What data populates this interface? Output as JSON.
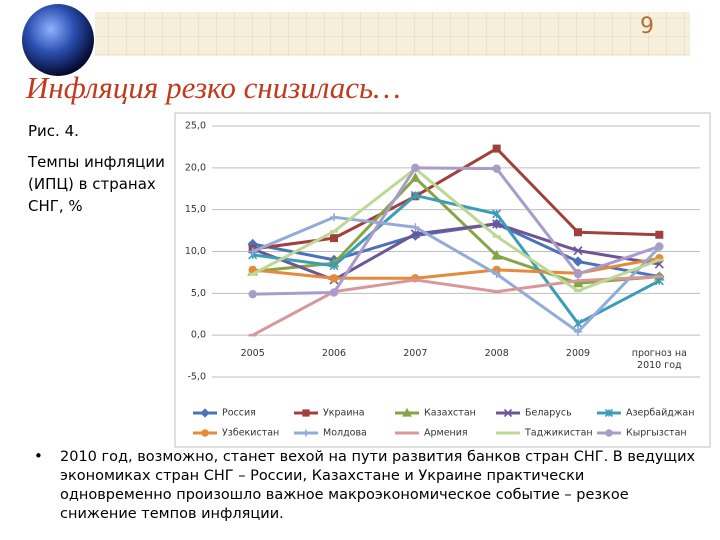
{
  "slide_number": "9",
  "title": "Инфляция резко снизилась…",
  "caption": {
    "figure": "Рис. 4.",
    "lines": [
      "Темпы инфляции",
      "(ИПЦ) в  странах",
      "СНГ, %"
    ]
  },
  "bullet": "2010 год, возможно, станет вехой на пути развития банков стран СНГ. В ведущих экономиках стран СНГ – России, Казахстане и Украине практически одновременно произошло важное макроэкономическое событие – резкое снижение темпов инфляции.",
  "chart_data": {
    "type": "line",
    "categories": [
      "2005",
      "2006",
      "2007",
      "2008",
      "2009",
      "прогноз на 2010 год"
    ],
    "ylim": [
      -5,
      25
    ],
    "yticks": [
      {
        "value": -5,
        "label": "-5,0"
      },
      {
        "value": 0,
        "label": "0,0"
      },
      {
        "value": 5,
        "label": "5,0"
      },
      {
        "value": 10,
        "label": "10,0"
      },
      {
        "value": 15,
        "label": "15,0"
      },
      {
        "value": 20,
        "label": "20,0"
      },
      {
        "value": 25,
        "label": "25,0"
      }
    ],
    "grid": true,
    "legend": "bottom",
    "series": [
      {
        "name": "Россия",
        "color": "#4a72b8",
        "marker": "diamond",
        "values": [
          10.9,
          9.0,
          11.9,
          13.3,
          8.8,
          7.0
        ]
      },
      {
        "name": "Украина",
        "color": "#a0403c",
        "marker": "square",
        "values": [
          10.3,
          11.6,
          16.6,
          22.3,
          12.3,
          12.0
        ]
      },
      {
        "name": "Казахстан",
        "color": "#87a545",
        "marker": "triangle",
        "values": [
          7.6,
          8.6,
          18.8,
          9.5,
          6.2,
          7.0
        ]
      },
      {
        "name": "Беларусь",
        "color": "#6e5596",
        "marker": "x",
        "values": [
          10.3,
          6.6,
          12.1,
          13.3,
          10.1,
          8.5
        ]
      },
      {
        "name": "Азербайджан",
        "color": "#3d9cb8",
        "marker": "star",
        "values": [
          9.6,
          8.3,
          16.7,
          14.5,
          1.4,
          6.5
        ]
      },
      {
        "name": "Узбекистан",
        "color": "#e58a3a",
        "marker": "circle",
        "values": [
          7.8,
          6.8,
          6.8,
          7.8,
          7.4,
          9.2
        ]
      },
      {
        "name": "Молдова",
        "color": "#93abd8",
        "marker": "plus",
        "values": [
          10.0,
          14.1,
          12.9,
          7.3,
          0.4,
          10.5
        ]
      },
      {
        "name": "Армения",
        "color": "#d8979a",
        "marker": "dash",
        "values": [
          0.0,
          5.2,
          6.6,
          5.2,
          6.5,
          7.0
        ]
      },
      {
        "name": "Таджикистан",
        "color": "#bdd894",
        "marker": "dash",
        "values": [
          7.3,
          12.4,
          19.9,
          11.8,
          5.3,
          9.0
        ]
      },
      {
        "name": "Кыргызстан",
        "color": "#aa9bc8",
        "marker": "circle",
        "values": [
          4.9,
          5.1,
          20.0,
          19.9,
          7.3,
          10.6
        ]
      }
    ]
  }
}
